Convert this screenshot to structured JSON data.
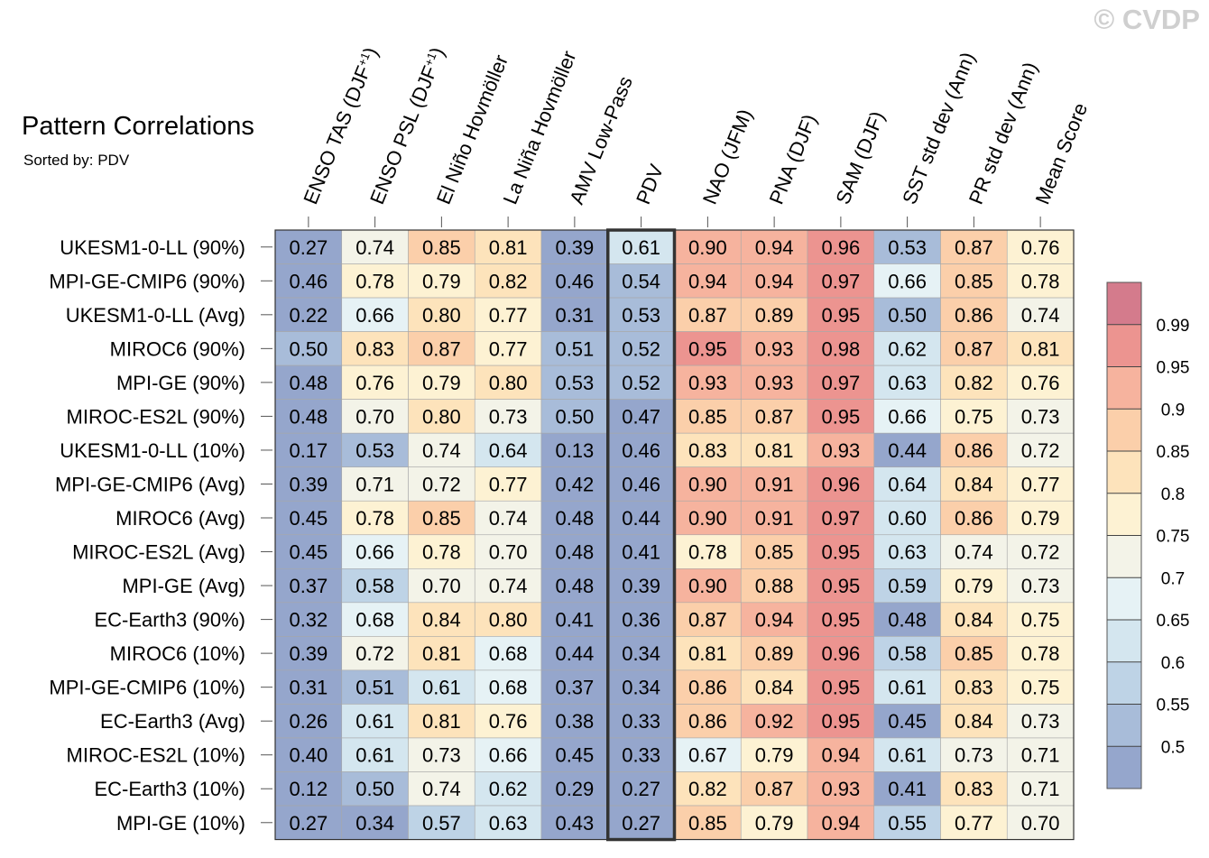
{
  "copyright": "© CVDP",
  "chart_data": {
    "type": "heatmap",
    "title": "Pattern Correlations",
    "subtitle": "Sorted by: PDV",
    "highlighted_column": "PDV",
    "columns": [
      "ENSO TAS (DJF+1)",
      "ENSO PSL (DJF+1)",
      "El Niño Hovmöller",
      "La Niña Hovmöller",
      "AMV Low-Pass",
      "PDV",
      "NAO (JFM)",
      "PNA (DJF)",
      "SAM (DJF)",
      "SST std dev (Ann)",
      "PR std dev (Ann)",
      "Mean Score"
    ],
    "rows": [
      {
        "label": "UKESM1-0-LL (90%)",
        "values": [
          "0.27",
          "0.74",
          "0.85",
          "0.81",
          "0.39",
          "0.61",
          "0.90",
          "0.94",
          "0.96",
          "0.53",
          "0.87",
          "0.76"
        ]
      },
      {
        "label": "MPI-GE-CMIP6 (90%)",
        "values": [
          "0.46",
          "0.78",
          "0.79",
          "0.82",
          "0.46",
          "0.54",
          "0.94",
          "0.94",
          "0.97",
          "0.66",
          "0.85",
          "0.78"
        ]
      },
      {
        "label": "UKESM1-0-LL (Avg)",
        "values": [
          "0.22",
          "0.66",
          "0.80",
          "0.77",
          "0.31",
          "0.53",
          "0.87",
          "0.89",
          "0.95",
          "0.50",
          "0.86",
          "0.74"
        ]
      },
      {
        "label": "MIROC6 (90%)",
        "values": [
          "0.50",
          "0.83",
          "0.87",
          "0.77",
          "0.51",
          "0.52",
          "0.95",
          "0.93",
          "0.98",
          "0.62",
          "0.87",
          "0.81"
        ]
      },
      {
        "label": "MPI-GE (90%)",
        "values": [
          "0.48",
          "0.76",
          "0.79",
          "0.80",
          "0.53",
          "0.52",
          "0.93",
          "0.93",
          "0.97",
          "0.63",
          "0.82",
          "0.76"
        ]
      },
      {
        "label": "MIROC-ES2L (90%)",
        "values": [
          "0.48",
          "0.70",
          "0.80",
          "0.73",
          "0.50",
          "0.47",
          "0.85",
          "0.87",
          "0.95",
          "0.66",
          "0.75",
          "0.73"
        ]
      },
      {
        "label": "UKESM1-0-LL (10%)",
        "values": [
          "0.17",
          "0.53",
          "0.74",
          "0.64",
          "0.13",
          "0.46",
          "0.83",
          "0.81",
          "0.93",
          "0.44",
          "0.86",
          "0.72"
        ]
      },
      {
        "label": "MPI-GE-CMIP6 (Avg)",
        "values": [
          "0.39",
          "0.71",
          "0.72",
          "0.77",
          "0.42",
          "0.46",
          "0.90",
          "0.91",
          "0.96",
          "0.64",
          "0.84",
          "0.77"
        ]
      },
      {
        "label": "MIROC6 (Avg)",
        "values": [
          "0.45",
          "0.78",
          "0.85",
          "0.74",
          "0.48",
          "0.44",
          "0.90",
          "0.91",
          "0.97",
          "0.60",
          "0.86",
          "0.79"
        ]
      },
      {
        "label": "MIROC-ES2L (Avg)",
        "values": [
          "0.45",
          "0.66",
          "0.78",
          "0.70",
          "0.48",
          "0.41",
          "0.78",
          "0.85",
          "0.95",
          "0.63",
          "0.74",
          "0.72"
        ]
      },
      {
        "label": "MPI-GE (Avg)",
        "values": [
          "0.37",
          "0.58",
          "0.70",
          "0.74",
          "0.48",
          "0.39",
          "0.90",
          "0.88",
          "0.95",
          "0.59",
          "0.79",
          "0.73"
        ]
      },
      {
        "label": "EC-Earth3 (90%)",
        "values": [
          "0.32",
          "0.68",
          "0.84",
          "0.80",
          "0.41",
          "0.36",
          "0.87",
          "0.94",
          "0.95",
          "0.48",
          "0.84",
          "0.75"
        ]
      },
      {
        "label": "MIROC6 (10%)",
        "values": [
          "0.39",
          "0.72",
          "0.81",
          "0.68",
          "0.44",
          "0.34",
          "0.81",
          "0.89",
          "0.96",
          "0.58",
          "0.85",
          "0.78"
        ]
      },
      {
        "label": "MPI-GE-CMIP6 (10%)",
        "values": [
          "0.31",
          "0.51",
          "0.61",
          "0.68",
          "0.37",
          "0.34",
          "0.86",
          "0.84",
          "0.95",
          "0.61",
          "0.83",
          "0.75"
        ]
      },
      {
        "label": "EC-Earth3 (Avg)",
        "values": [
          "0.26",
          "0.61",
          "0.81",
          "0.76",
          "0.38",
          "0.33",
          "0.86",
          "0.92",
          "0.95",
          "0.45",
          "0.84",
          "0.73"
        ]
      },
      {
        "label": "MIROC-ES2L (10%)",
        "values": [
          "0.40",
          "0.61",
          "0.73",
          "0.66",
          "0.45",
          "0.33",
          "0.67",
          "0.79",
          "0.94",
          "0.61",
          "0.73",
          "0.71"
        ]
      },
      {
        "label": "EC-Earth3 (10%)",
        "values": [
          "0.12",
          "0.50",
          "0.74",
          "0.62",
          "0.29",
          "0.27",
          "0.82",
          "0.87",
          "0.93",
          "0.41",
          "0.83",
          "0.71"
        ]
      },
      {
        "label": "MPI-GE (10%)",
        "values": [
          "0.27",
          "0.34",
          "0.57",
          "0.63",
          "0.43",
          "0.27",
          "0.85",
          "0.79",
          "0.94",
          "0.55",
          "0.77",
          "0.70"
        ]
      }
    ],
    "colorbar": {
      "levels": [
        0.5,
        0.55,
        0.6,
        0.65,
        0.7,
        0.75,
        0.8,
        0.85,
        0.9,
        0.95,
        0.99
      ],
      "labels": [
        "0.5",
        "0.55",
        "0.6",
        "0.65",
        "0.7",
        "0.75",
        "0.8",
        "0.85",
        "0.9",
        "0.95",
        "0.99"
      ],
      "colors": [
        "#95a6cc",
        "#a8bcd9",
        "#bed3e6",
        "#d4e6ef",
        "#e6f2f5",
        "#f3f3e8",
        "#fdf2d3",
        "#fde3bb",
        "#fbcfaa",
        "#f6b39e",
        "#ec9490",
        "#d47b8c"
      ]
    }
  }
}
